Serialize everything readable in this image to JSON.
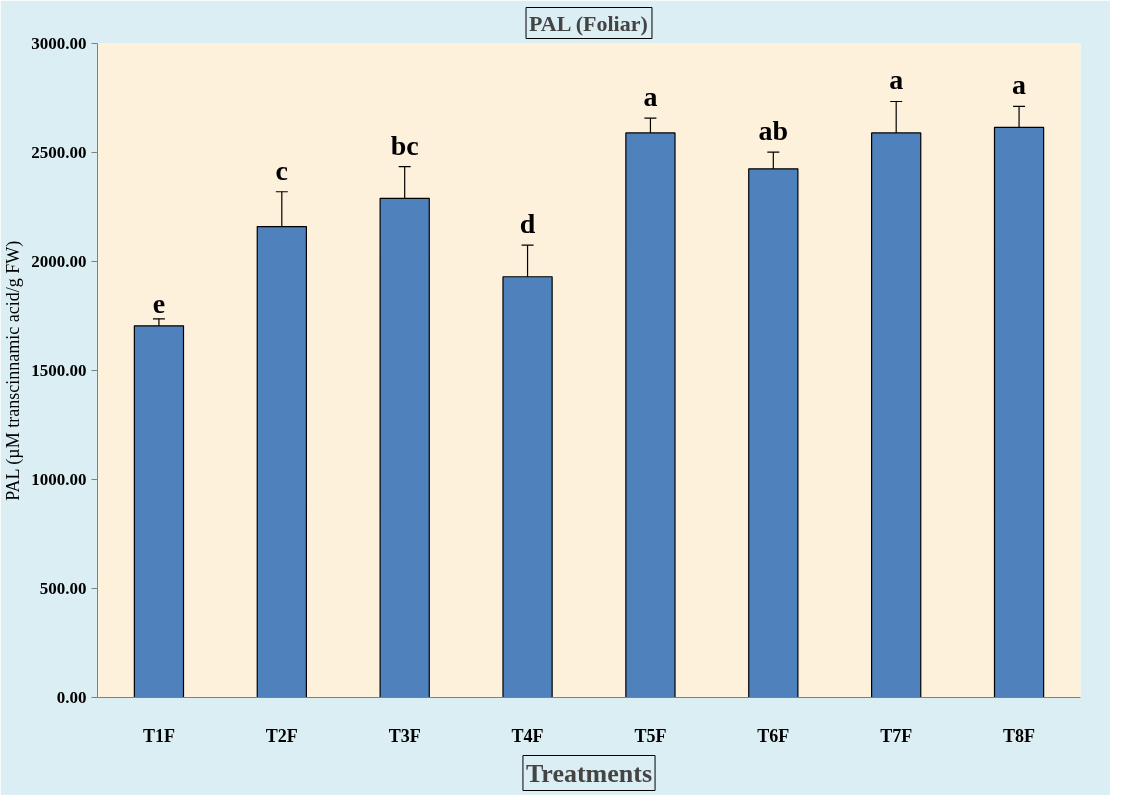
{
  "chart_data": {
    "type": "bar",
    "title": "PAL (Foliar)",
    "xlabel": "Treatments",
    "ylabel": "PAL (µM transcinnamic acid/g FW)",
    "categories": [
      "T1F",
      "T2F",
      "T3F",
      "T4F",
      "T5F",
      "T6F",
      "T7F",
      "T8F"
    ],
    "values": [
      1705,
      2160,
      2290,
      1930,
      2590,
      2425,
      2590,
      2615
    ],
    "errors": [
      32,
      160,
      145,
      145,
      68,
      77,
      144,
      97
    ],
    "color": "#4f81bd",
    "ylim": [
      0,
      3000
    ],
    "yticks": [
      {
        "value": 0,
        "label": "0.00"
      },
      {
        "value": 500,
        "label": "500.00"
      },
      {
        "value": 1000,
        "label": "1000.00"
      },
      {
        "value": 1500,
        "label": "1500.00"
      },
      {
        "value": 2000,
        "label": "2000.00"
      },
      {
        "value": 2500,
        "label": "2500.00"
      },
      {
        "value": 3000,
        "label": "3000.00"
      }
    ],
    "grid": false,
    "annotations": [
      "e",
      "c",
      "bc",
      "d",
      "a",
      "ab",
      "a",
      "a"
    ]
  }
}
